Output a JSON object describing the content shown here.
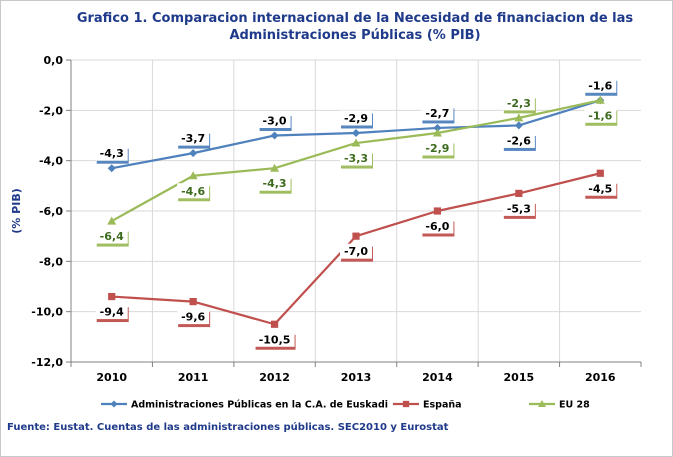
{
  "chart_data": {
    "type": "line",
    "title": "Grafico 1. Comparacion internacional de  la Necesidad de financiacion de las Administraciones Públicas (% PIB)",
    "title_lines": [
      "Grafico 1. Comparacion internacional de  la Necesidad de financiacion de las",
      "Administraciones Públicas (% PIB)"
    ],
    "xlabel": "",
    "ylabel": "(% PIB)",
    "categories": [
      "2010",
      "2011",
      "2012",
      "2013",
      "2014",
      "2015",
      "2016"
    ],
    "ylim": [
      -12,
      0
    ],
    "yticks": [
      0,
      -2,
      -4,
      -6,
      -8,
      -10,
      -12
    ],
    "ytick_labels": [
      "0,0",
      "-2,0",
      "-4,0",
      "-6,0",
      "-8,0",
      "-10,0",
      "-12,0"
    ],
    "grid": true,
    "legend_position": "bottom",
    "series": [
      {
        "name": "Administraciones Públicas en la C.A. de Euskadi",
        "values": [
          -4.3,
          -3.7,
          -3.0,
          -2.9,
          -2.7,
          -2.6,
          -1.6
        ],
        "labels": [
          "-4,3",
          "-3,7",
          "-3,0",
          "-2,9",
          "-2,7",
          "-2,6",
          "-1,6"
        ],
        "label_side": [
          "above",
          "above",
          "above",
          "above",
          "above",
          "below",
          "above"
        ],
        "color": "#4f81bd",
        "marker": "diamond"
      },
      {
        "name": "España",
        "values": [
          -9.4,
          -9.6,
          -10.5,
          -7.0,
          -6.0,
          -5.3,
          -4.5
        ],
        "labels": [
          "-9,4",
          "-9,6",
          "-10,5",
          "-7,0",
          "-6,0",
          "-5,3",
          "-4,5"
        ],
        "label_side": [
          "below",
          "below",
          "below",
          "below",
          "below",
          "below",
          "below"
        ],
        "color": "#c0504d",
        "marker": "square"
      },
      {
        "name": "EU 28",
        "values": [
          -6.4,
          -4.6,
          -4.3,
          -3.3,
          -2.9,
          -2.3,
          -1.6
        ],
        "labels": [
          "-6,4",
          "-4,6",
          "-4,3",
          "-3,3",
          "-2,9",
          "-2,3",
          "-1,6"
        ],
        "label_side": [
          "below",
          "below",
          "below",
          "below",
          "below",
          "above",
          "below"
        ],
        "color": "#9bbb59",
        "marker": "triangle"
      }
    ],
    "source": "Fuente: Eustat. Cuentas de las administraciones públicas. SEC2010 y Eurostat"
  }
}
